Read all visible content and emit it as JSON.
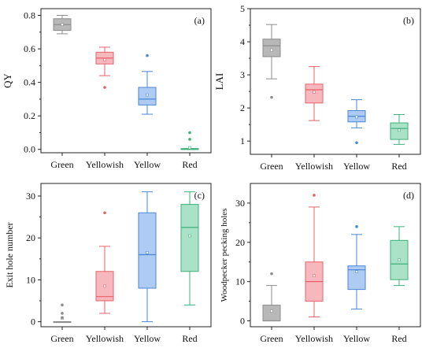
{
  "figure": {
    "background": "#ffffff"
  },
  "chart_data": [
    {
      "type": "box",
      "panel_label": "(a)",
      "ylabel": "QY",
      "xlabel": "",
      "ylim": [
        -0.02,
        0.84
      ],
      "yticks": [
        0.0,
        0.2,
        0.4,
        0.6,
        0.8
      ],
      "ytick_labels": [
        "0.0",
        "0.2",
        "0.4",
        "0.6",
        "0.8"
      ],
      "categories": [
        "Green",
        "Yellowish",
        "Yellow",
        "Red"
      ],
      "boxes": [
        {
          "category": "Green",
          "color": "#8c8c8c",
          "fill": "#b8b8b8",
          "whisker_low": 0.69,
          "q1": 0.71,
          "median": 0.745,
          "q3": 0.78,
          "whisker_high": 0.8,
          "mean": 0.745,
          "outliers": []
        },
        {
          "category": "Yellowish",
          "color": "#e8606a",
          "fill": "#f7b8bd",
          "whisker_low": 0.44,
          "q1": 0.51,
          "median": 0.545,
          "q3": 0.58,
          "whisker_high": 0.61,
          "mean": 0.535,
          "outliers": [
            0.37
          ]
        },
        {
          "category": "Yellow",
          "color": "#4a86d8",
          "fill": "#aeccf3",
          "whisker_low": 0.21,
          "q1": 0.265,
          "median": 0.3,
          "q3": 0.37,
          "whisker_high": 0.465,
          "mean": 0.325,
          "outliers": [
            0.56
          ]
        },
        {
          "category": "Red",
          "color": "#3fb07a",
          "fill": "#a9e2c6",
          "whisker_low": 0.0,
          "q1": 0.0,
          "median": 0.0,
          "q3": 0.005,
          "whisker_high": 0.005,
          "mean": 0.01,
          "outliers": [
            0.06,
            0.1
          ]
        }
      ]
    },
    {
      "type": "box",
      "panel_label": "(b)",
      "ylabel": "LAI",
      "xlabel": "",
      "ylim": [
        0.6,
        5.0
      ],
      "yticks": [
        1,
        2,
        3,
        4,
        5
      ],
      "ytick_labels": [
        "1",
        "2",
        "3",
        "4",
        "5"
      ],
      "categories": [
        "Green",
        "Yellowish",
        "Yellow",
        "Red"
      ],
      "boxes": [
        {
          "category": "Green",
          "color": "#8c8c8c",
          "fill": "#b8b8b8",
          "whisker_low": 2.88,
          "q1": 3.55,
          "median": 3.88,
          "q3": 4.08,
          "whisker_high": 4.52,
          "mean": 3.75,
          "outliers": [
            2.32
          ]
        },
        {
          "category": "Yellowish",
          "color": "#e8606a",
          "fill": "#f7b8bd",
          "whisker_low": 1.62,
          "q1": 2.15,
          "median": 2.55,
          "q3": 2.72,
          "whisker_high": 3.25,
          "mean": 2.48,
          "outliers": []
        },
        {
          "category": "Yellow",
          "color": "#4a86d8",
          "fill": "#aeccf3",
          "whisker_low": 1.4,
          "q1": 1.58,
          "median": 1.75,
          "q3": 1.92,
          "whisker_high": 2.25,
          "mean": 1.73,
          "outliers": [
            0.95
          ]
        },
        {
          "category": "Red",
          "color": "#3fb07a",
          "fill": "#a9e2c6",
          "whisker_low": 0.9,
          "q1": 1.05,
          "median": 1.38,
          "q3": 1.55,
          "whisker_high": 1.8,
          "mean": 1.33,
          "outliers": []
        }
      ]
    },
    {
      "type": "box",
      "panel_label": "(c)",
      "ylabel": "Exit hole number",
      "xlabel": "",
      "ylim": [
        -1.2,
        33
      ],
      "yticks": [
        0,
        10,
        20,
        30
      ],
      "ytick_labels": [
        "0",
        "10",
        "20",
        "30"
      ],
      "categories": [
        "Green",
        "Yellowish",
        "Yellow",
        "Red"
      ],
      "boxes": [
        {
          "category": "Green",
          "color": "#8c8c8c",
          "fill": "#b8b8b8",
          "whisker_low": 0,
          "q1": 0,
          "median": 0,
          "q3": 0,
          "whisker_high": 0,
          "mean": 0.8,
          "outliers": [
            1,
            2,
            4
          ]
        },
        {
          "category": "Yellowish",
          "color": "#e8606a",
          "fill": "#f7b8bd",
          "whisker_low": 2,
          "q1": 5,
          "median": 6,
          "q3": 12,
          "whisker_high": 18,
          "mean": 8.5,
          "outliers": [
            26
          ]
        },
        {
          "category": "Yellow",
          "color": "#4a86d8",
          "fill": "#aeccf3",
          "whisker_low": 0,
          "q1": 8,
          "median": 16,
          "q3": 26,
          "whisker_high": 31,
          "mean": 16.5,
          "outliers": []
        },
        {
          "category": "Red",
          "color": "#3fb07a",
          "fill": "#a9e2c6",
          "whisker_low": 4,
          "q1": 12,
          "median": 22.5,
          "q3": 28,
          "whisker_high": 31,
          "mean": 20.5,
          "outliers": []
        }
      ]
    },
    {
      "type": "box",
      "panel_label": "(d)",
      "ylabel": "Woodpecker pecking holes",
      "xlabel": "",
      "ylim": [
        -1.5,
        35
      ],
      "yticks": [
        0,
        10,
        20,
        30
      ],
      "ytick_labels": [
        "0",
        "10",
        "20",
        "30"
      ],
      "categories": [
        "Green",
        "Yellowish",
        "Yellow",
        "Red"
      ],
      "boxes": [
        {
          "category": "Green",
          "color": "#8c8c8c",
          "fill": "#b8b8b8",
          "whisker_low": 0,
          "q1": 0,
          "median": 0,
          "q3": 4,
          "whisker_high": 9,
          "mean": 2.5,
          "outliers": [
            12
          ]
        },
        {
          "category": "Yellowish",
          "color": "#e8606a",
          "fill": "#f7b8bd",
          "whisker_low": 1,
          "q1": 5,
          "median": 10,
          "q3": 15,
          "whisker_high": 29,
          "mean": 11.5,
          "outliers": [
            32
          ]
        },
        {
          "category": "Yellow",
          "color": "#4a86d8",
          "fill": "#aeccf3",
          "whisker_low": 3,
          "q1": 8,
          "median": 13,
          "q3": 14,
          "whisker_high": 22,
          "mean": 12.5,
          "outliers": [
            24
          ]
        },
        {
          "category": "Red",
          "color": "#3fb07a",
          "fill": "#a9e2c6",
          "whisker_low": 9,
          "q1": 10.5,
          "median": 14.5,
          "q3": 20.5,
          "whisker_high": 24,
          "mean": 15.5,
          "outliers": []
        }
      ]
    }
  ]
}
